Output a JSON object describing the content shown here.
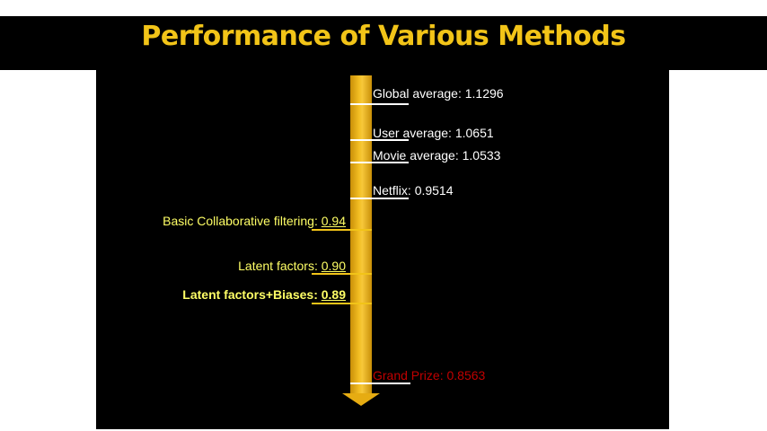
{
  "title": "Performance of Various Methods",
  "colors": {
    "title": "#f2c418",
    "axis": "#e6ac12",
    "right_labels": "#ffffff",
    "left_labels": "#ffff66",
    "grand_prize": "#c00000"
  },
  "right_markers": [
    {
      "name": "Global average",
      "value": "1.1296"
    },
    {
      "name": "User average",
      "value": "1.0651"
    },
    {
      "name": "Movie average",
      "value": "1.0533"
    },
    {
      "name": "Netflix",
      "value": "0.9514"
    }
  ],
  "left_markers": [
    {
      "name": "Basic Collaborative filtering",
      "value": "0.94"
    },
    {
      "name": "Latent factors",
      "value": "0.90"
    },
    {
      "name": "Latent factors+Biases",
      "value": "0.89"
    }
  ],
  "grand_prize": {
    "name": "Grand Prize",
    "value": "0.8563"
  }
}
